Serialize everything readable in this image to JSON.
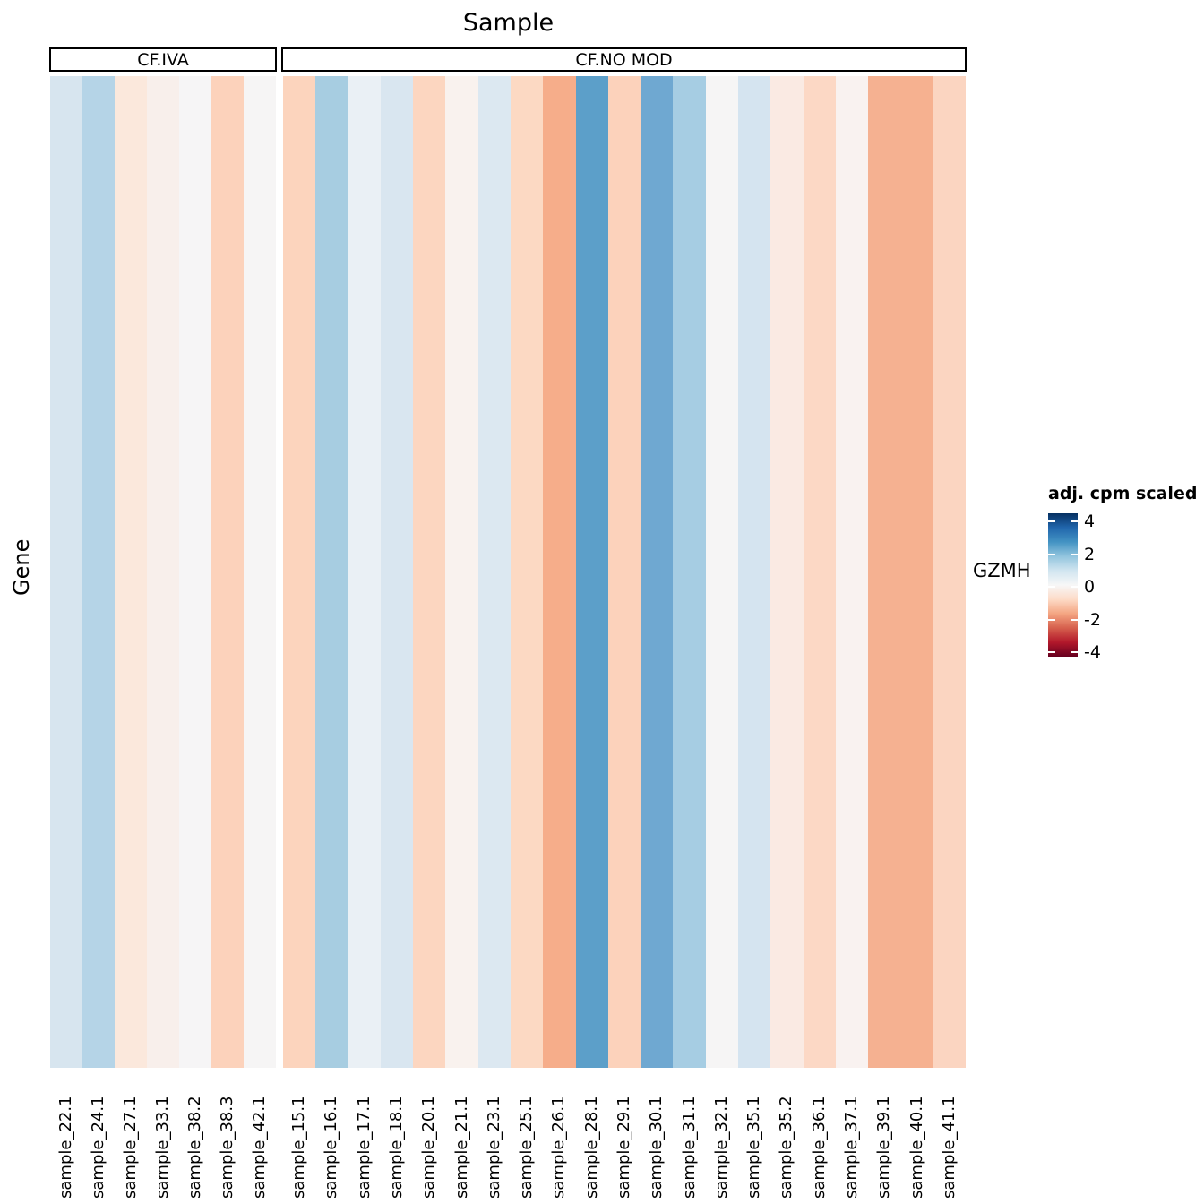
{
  "title": "Sample",
  "ylabel": "Gene",
  "row_label": "GZMH",
  "groups": [
    {
      "label": "CF.IVA",
      "samples": [
        {
          "name": "sample_22.1",
          "color": "#d7e5ef",
          "value": 1.2
        },
        {
          "name": "sample_24.1",
          "color": "#b5d4e7",
          "value": 1.8
        },
        {
          "name": "sample_27.1",
          "color": "#fbe8dc",
          "value": -0.7
        },
        {
          "name": "sample_33.1",
          "color": "#f8efeb",
          "value": -0.3
        },
        {
          "name": "sample_38.2",
          "color": "#f6f5f6",
          "value": 0.0
        },
        {
          "name": "sample_38.3",
          "color": "#fcd2bb",
          "value": -1.5
        },
        {
          "name": "sample_42.1",
          "color": "#f6f5f5",
          "value": 0.0
        }
      ]
    },
    {
      "label": "CF.NO MOD",
      "samples": [
        {
          "name": "sample_15.1",
          "color": "#fcd4bd",
          "value": -1.4
        },
        {
          "name": "sample_16.1",
          "color": "#a7cde1",
          "value": 2.1
        },
        {
          "name": "sample_17.1",
          "color": "#eaf0f5",
          "value": 0.4
        },
        {
          "name": "sample_18.1",
          "color": "#d9e6f0",
          "value": 1.2
        },
        {
          "name": "sample_20.1",
          "color": "#fcd6c0",
          "value": -1.4
        },
        {
          "name": "sample_21.1",
          "color": "#f9f2ee",
          "value": -0.2
        },
        {
          "name": "sample_23.1",
          "color": "#dce8f1",
          "value": 1.1
        },
        {
          "name": "sample_25.1",
          "color": "#fcd9c3",
          "value": -1.3
        },
        {
          "name": "sample_26.1",
          "color": "#f6ad8a",
          "value": -1.9
        },
        {
          "name": "sample_28.1",
          "color": "#5c9fc9",
          "value": 3.0
        },
        {
          "name": "sample_29.1",
          "color": "#fcd2bb",
          "value": -1.5
        },
        {
          "name": "sample_30.1",
          "color": "#6fa8d1",
          "value": 2.7
        },
        {
          "name": "sample_31.1",
          "color": "#a6cde3",
          "value": 2.1
        },
        {
          "name": "sample_32.1",
          "color": "#f6f5f5",
          "value": 0.0
        },
        {
          "name": "sample_35.1",
          "color": "#d5e4f0",
          "value": 1.2
        },
        {
          "name": "sample_35.2",
          "color": "#faeae3",
          "value": -0.6
        },
        {
          "name": "sample_36.1",
          "color": "#fcd8c5",
          "value": -1.3
        },
        {
          "name": "sample_37.1",
          "color": "#f9f2f0",
          "value": -0.2
        },
        {
          "name": "sample_39.1",
          "color": "#f5b191",
          "value": -1.8
        },
        {
          "name": "sample_40.1",
          "color": "#f6b190",
          "value": -1.8
        },
        {
          "name": "sample_41.1",
          "color": "#fbd5c1",
          "value": -1.4
        }
      ]
    }
  ],
  "legend": {
    "title": "adj. cpm scaled",
    "tick_labels": [
      "4",
      "2",
      "0",
      "-2",
      "-4"
    ],
    "palette": [
      "#053061",
      "#2166ac",
      "#4393c3",
      "#92c5de",
      "#d1e5f0",
      "#f7f7f7",
      "#fddbc7",
      "#f4a582",
      "#d6604d",
      "#b2182b",
      "#67001f"
    ]
  },
  "chart_data": {
    "type": "heatmap",
    "title": "Sample",
    "xlabel": "Sample",
    "ylabel": "Gene",
    "rows": [
      "GZMH"
    ],
    "column_groups": [
      {
        "label": "CF.IVA",
        "columns": [
          "sample_22.1",
          "sample_24.1",
          "sample_27.1",
          "sample_33.1",
          "sample_38.2",
          "sample_38.3",
          "sample_42.1"
        ]
      },
      {
        "label": "CF.NO MOD",
        "columns": [
          "sample_15.1",
          "sample_16.1",
          "sample_17.1",
          "sample_18.1",
          "sample_20.1",
          "sample_21.1",
          "sample_23.1",
          "sample_25.1",
          "sample_26.1",
          "sample_28.1",
          "sample_29.1",
          "sample_30.1",
          "sample_31.1",
          "sample_32.1",
          "sample_35.1",
          "sample_35.2",
          "sample_36.1",
          "sample_37.1",
          "sample_39.1",
          "sample_40.1",
          "sample_41.1"
        ]
      }
    ],
    "series": [
      {
        "name": "GZMH",
        "values": [
          1.2,
          1.8,
          -0.7,
          -0.3,
          0.0,
          -1.5,
          0.0,
          -1.4,
          2.1,
          0.4,
          1.2,
          -1.4,
          -0.2,
          1.1,
          -1.3,
          -1.9,
          3.0,
          -1.5,
          2.7,
          2.1,
          0.0,
          1.2,
          -0.6,
          -1.3,
          -0.2,
          -1.8,
          -1.8,
          -1.4
        ]
      }
    ],
    "colorbar": {
      "title": "adj. cpm scaled",
      "ticks": [
        4,
        2,
        0,
        -2,
        -4
      ],
      "range": [
        -4.4,
        4.4
      ],
      "palette": "RdBu (blue = high, red = low)"
    }
  }
}
